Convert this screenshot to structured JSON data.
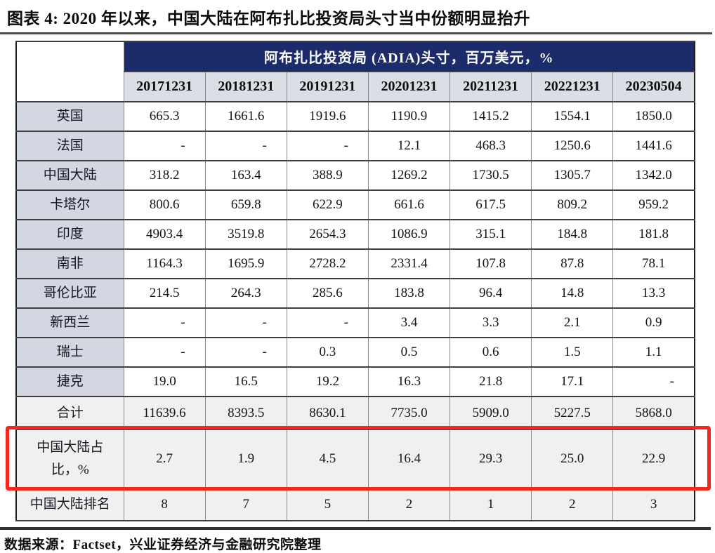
{
  "title": "图表 4: 2020 年以来，中国大陆在阿布扎比投资局头寸当中份额明显抬升",
  "table": {
    "band_header": "阿布扎比投资局 (ADIA)头寸，百万美元，%",
    "columns": [
      "20171231",
      "20181231",
      "20191231",
      "20201231",
      "20211231",
      "20221231",
      "20230504"
    ],
    "rows": [
      {
        "label": "英国",
        "values": [
          "665.3",
          "1661.6",
          "1919.6",
          "1190.9",
          "1415.2",
          "1554.1",
          "1850.0"
        ]
      },
      {
        "label": "法国",
        "values": [
          "-",
          "-",
          "-",
          "12.1",
          "468.3",
          "1250.6",
          "1441.6"
        ]
      },
      {
        "label": "中国大陆",
        "values": [
          "318.2",
          "163.4",
          "388.9",
          "1269.2",
          "1730.5",
          "1305.7",
          "1342.0"
        ]
      },
      {
        "label": "卡塔尔",
        "values": [
          "800.6",
          "659.8",
          "622.9",
          "661.6",
          "617.5",
          "809.2",
          "959.2"
        ]
      },
      {
        "label": "印度",
        "values": [
          "4903.4",
          "3519.8",
          "2654.3",
          "1086.9",
          "315.1",
          "184.8",
          "181.8"
        ]
      },
      {
        "label": "南非",
        "values": [
          "1164.3",
          "1695.9",
          "2728.2",
          "2331.4",
          "107.8",
          "87.8",
          "78.1"
        ]
      },
      {
        "label": "哥伦比亚",
        "values": [
          "214.5",
          "264.3",
          "285.6",
          "183.8",
          "96.4",
          "14.8",
          "13.3"
        ]
      },
      {
        "label": "新西兰",
        "values": [
          "-",
          "-",
          "-",
          "3.4",
          "3.3",
          "2.1",
          "0.9"
        ]
      },
      {
        "label": "瑞士",
        "values": [
          "-",
          "-",
          "0.3",
          "0.5",
          "0.6",
          "1.5",
          "1.1"
        ]
      },
      {
        "label": "捷克",
        "values": [
          "19.0",
          "16.5",
          "19.2",
          "16.3",
          "21.8",
          "17.1",
          "-"
        ]
      },
      {
        "label": "合计",
        "section": "summary",
        "values": [
          "11639.6",
          "8393.5",
          "8630.1",
          "7735.0",
          "5909.0",
          "5227.5",
          "5868.0"
        ]
      },
      {
        "label": "中国大陆占\n比，%",
        "section": "summary",
        "highlighted": true,
        "values": [
          "2.7",
          "1.9",
          "4.5",
          "16.4",
          "29.3",
          "25.0",
          "22.9"
        ]
      },
      {
        "label": "中国大陆排名",
        "section": "summary",
        "values": [
          "8",
          "7",
          "5",
          "2",
          "1",
          "2",
          "3"
        ]
      }
    ]
  },
  "footer": "数据来源：Factset，兴业证券经济与金融研究院整理",
  "colors": {
    "band_bg": "#1c2c6a",
    "band_text": "#ffffff",
    "column_header_bg": "#dcdee5",
    "row_label_bg": "#d3d7e2",
    "data_cell_bg": "#ffffff",
    "summary_row_bg": "#f1f0f1",
    "highlight_border": "#f4281c"
  }
}
